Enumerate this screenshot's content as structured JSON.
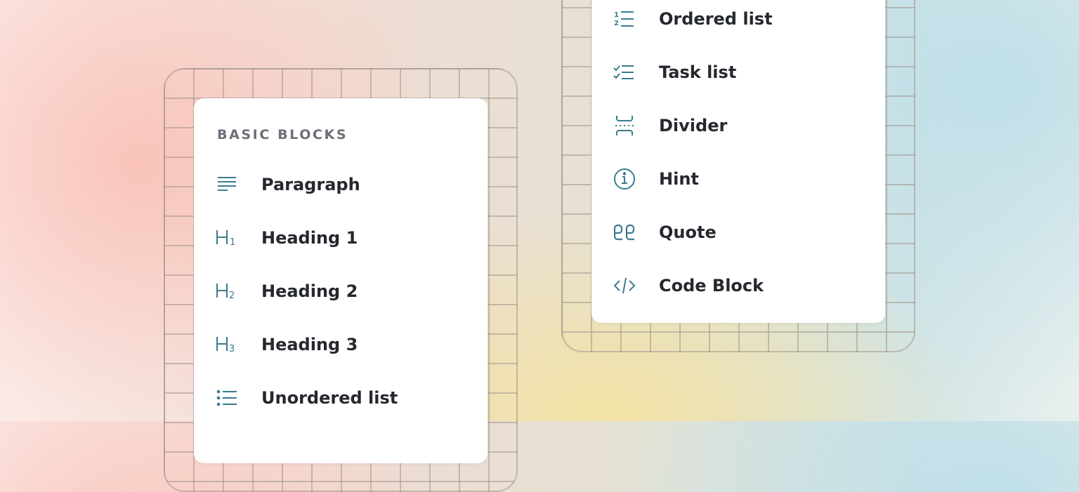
{
  "accent_color": "#3a7a90",
  "left_menu": {
    "section_title": "BASIC BLOCKS",
    "items": [
      {
        "label": "Paragraph",
        "icon": "paragraph-icon"
      },
      {
        "label": "Heading 1",
        "icon": "heading-1-icon"
      },
      {
        "label": "Heading 2",
        "icon": "heading-2-icon"
      },
      {
        "label": "Heading 3",
        "icon": "heading-3-icon"
      },
      {
        "label": "Unordered list",
        "icon": "unordered-list-icon"
      }
    ]
  },
  "right_menu": {
    "items": [
      {
        "label": "Ordered list",
        "icon": "ordered-list-icon"
      },
      {
        "label": "Task list",
        "icon": "task-list-icon"
      },
      {
        "label": "Divider",
        "icon": "divider-icon"
      },
      {
        "label": "Hint",
        "icon": "info-icon"
      },
      {
        "label": "Quote",
        "icon": "quote-icon"
      },
      {
        "label": "Code Block",
        "icon": "code-icon"
      }
    ]
  }
}
